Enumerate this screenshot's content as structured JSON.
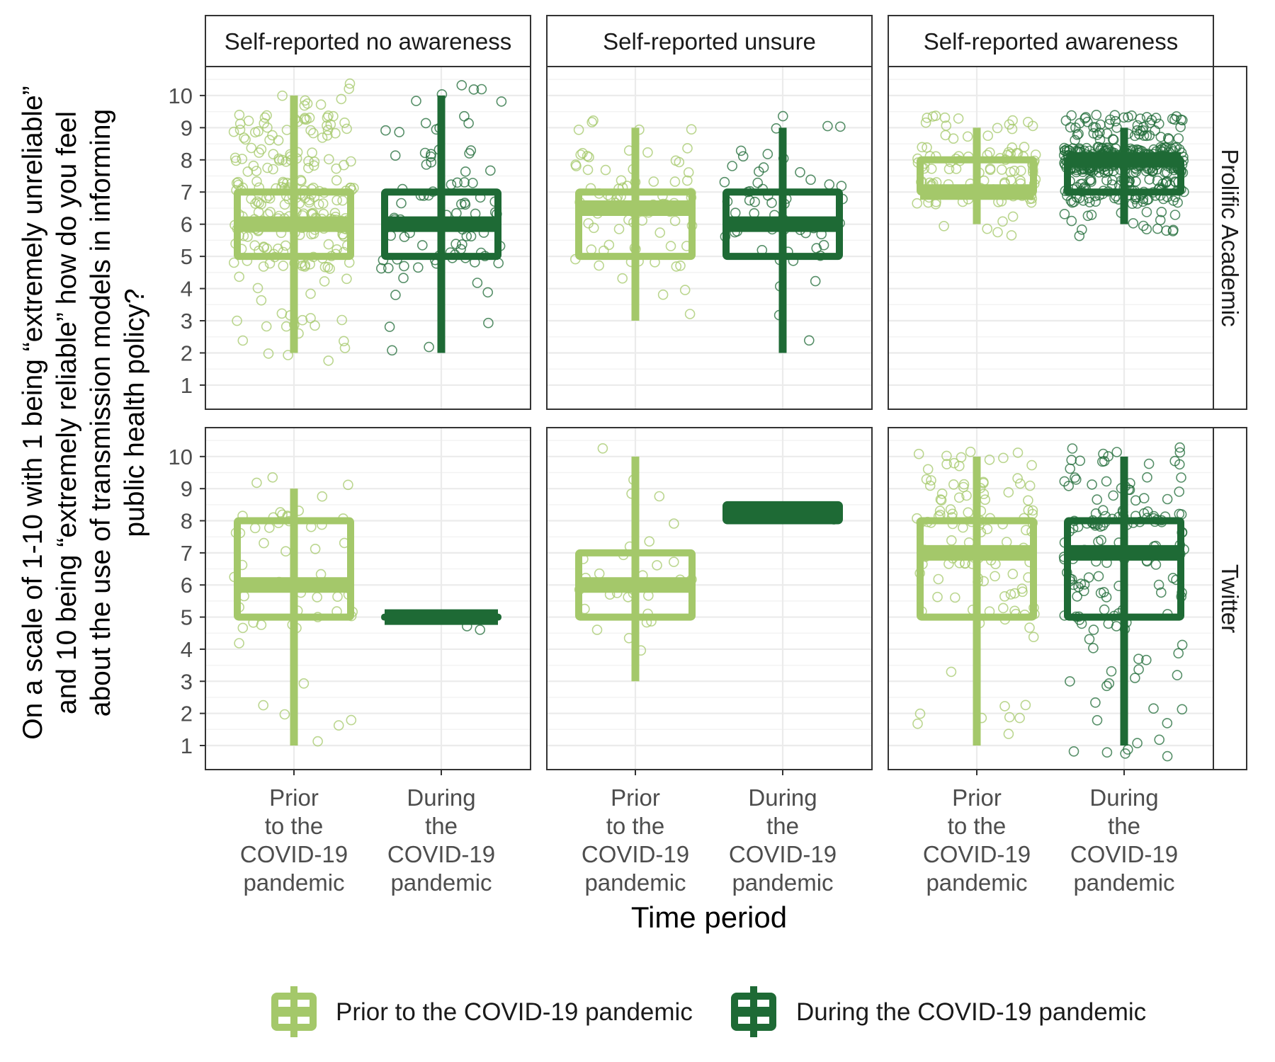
{
  "chart_data": {
    "type": "boxplot",
    "ylabel_lines": [
      "On a scale of 1-10 with 1 being “extremely unreliable”",
      "and 10 being “extremely reliable” how do you feel",
      "about the use of transmission models in informing",
      "public health policy?"
    ],
    "xlabel": "Time period",
    "ylim": [
      0.25,
      10.9
    ],
    "yticks": [
      1,
      2,
      3,
      4,
      5,
      6,
      7,
      8,
      9,
      10
    ],
    "column_facets": [
      "Self-reported no awareness",
      "Self-reported unsure",
      "Self-reported awareness"
    ],
    "row_facets": [
      "Prolific Academic",
      "Twitter"
    ],
    "categories": [
      [
        "Prior",
        "to the",
        "COVID-19",
        "pandemic"
      ],
      [
        "During",
        "the",
        "COVID-19",
        "pandemic"
      ]
    ],
    "colors": {
      "prior": "#a4c86a",
      "during": "#1e6a35",
      "grid": "#ebebeb",
      "axis_text": "#4d4d4d"
    },
    "legend": {
      "position": "bottom",
      "items": [
        "Prior to the COVID-19 pandemic",
        "During the COVID-19 pandemic"
      ]
    },
    "grid": true,
    "boxes": [
      {
        "row": 0,
        "col": 0,
        "group": 0,
        "min": 2,
        "q1": 5,
        "median": 6,
        "q3": 7,
        "max": 10,
        "n_points": 260
      },
      {
        "row": 0,
        "col": 0,
        "group": 1,
        "min": 2,
        "q1": 5,
        "median": 6,
        "q3": 7,
        "max": 10,
        "n_points": 90
      },
      {
        "row": 0,
        "col": 1,
        "group": 0,
        "min": 3,
        "q1": 5,
        "median": 6.5,
        "q3": 7,
        "max": 9,
        "n_points": 75
      },
      {
        "row": 0,
        "col": 1,
        "group": 1,
        "min": 2,
        "q1": 5,
        "median": 6,
        "q3": 7,
        "max": 9,
        "n_points": 55
      },
      {
        "row": 0,
        "col": 2,
        "group": 0,
        "min": 6,
        "q1": 7,
        "median": 7,
        "q3": 8,
        "max": 9,
        "n_points": 110
      },
      {
        "row": 0,
        "col": 2,
        "group": 1,
        "min": 6,
        "q1": 7,
        "median": 8,
        "q3": 8,
        "max": 9,
        "n_points": 420
      },
      {
        "row": 1,
        "col": 0,
        "group": 0,
        "min": 1,
        "q1": 5,
        "median": 6,
        "q3": 8,
        "max": 9,
        "n_points": 55
      },
      {
        "row": 1,
        "col": 0,
        "group": 1,
        "min": 5,
        "q1": 5,
        "median": 5,
        "q3": 5,
        "max": 5,
        "n_points": 2
      },
      {
        "row": 1,
        "col": 1,
        "group": 0,
        "min": 3,
        "q1": 5,
        "median": 6,
        "q3": 7,
        "max": 10,
        "n_points": 35
      },
      {
        "row": 1,
        "col": 1,
        "group": 1,
        "min": 8,
        "q1": 8,
        "median": 8.25,
        "q3": 8.5,
        "max": 8.5,
        "n_points": 1
      },
      {
        "row": 1,
        "col": 2,
        "group": 0,
        "min": 1,
        "q1": 5,
        "median": 7,
        "q3": 8,
        "max": 10,
        "n_points": 120
      },
      {
        "row": 1,
        "col": 2,
        "group": 1,
        "min": 1,
        "q1": 5,
        "median": 7,
        "q3": 8,
        "max": 10,
        "n_points": 165
      }
    ]
  }
}
